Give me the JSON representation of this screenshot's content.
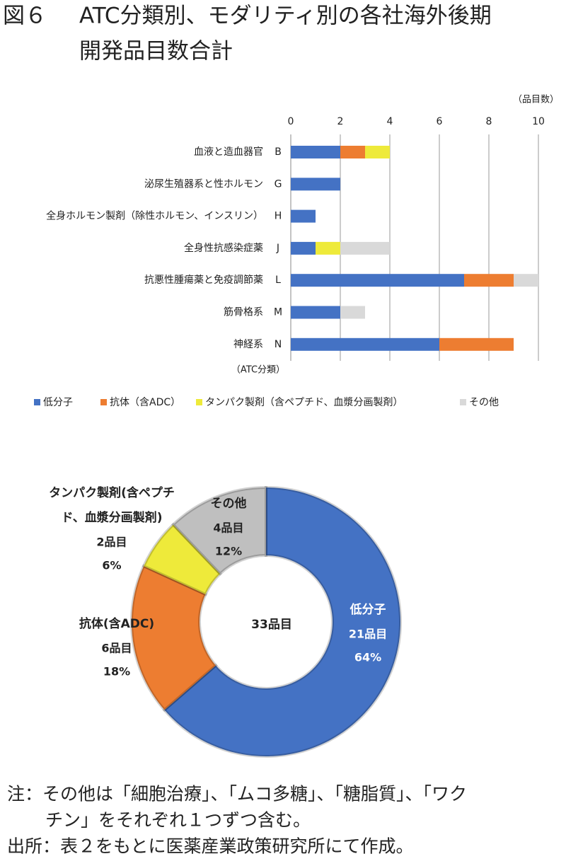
{
  "title": {
    "figure": "図６",
    "lines": [
      "ATC分類別、モダリティ別の各社海外後期",
      "開発品目数合計"
    ]
  },
  "chart_data": [
    {
      "type": "bar",
      "orientation": "horizontal",
      "stacked": true,
      "categories": [
        "血液と造血器官",
        "泌尿生殖器系と性ホルモン",
        "全身ホルモン製剤（除性ホルモン、インスリン）",
        "全身性抗感染症薬",
        "抗悪性腫瘍薬と免疫調節薬",
        "筋骨格系",
        "神経系"
      ],
      "codes": [
        "B",
        "G",
        "H",
        "J",
        "L",
        "M",
        "N"
      ],
      "series": [
        {
          "name": "低分子",
          "color": "#4472c4",
          "values": [
            2,
            2,
            1,
            1,
            7,
            2,
            6
          ]
        },
        {
          "name": "抗体（含ADC）",
          "color": "#ed7d31",
          "values": [
            1,
            0,
            0,
            0,
            2,
            0,
            3
          ]
        },
        {
          "name": "タンパク製剤（含ペプチド、血漿分画製剤）",
          "color": "#eeea3a",
          "values": [
            1,
            0,
            0,
            1,
            0,
            0,
            0
          ]
        },
        {
          "name": "その他",
          "color": "#d9d9d9",
          "values": [
            0,
            0,
            0,
            2,
            1,
            1,
            0
          ]
        }
      ],
      "xlim": [
        0,
        10
      ],
      "xticks": [
        0,
        2,
        4,
        6,
        8,
        10
      ],
      "grid": true,
      "x_unit": "（品目数）",
      "y_label": "（ATC分類）",
      "legend": "bottom"
    },
    {
      "type": "donut",
      "labels": [
        [
          "低分子"
        ],
        [
          "抗体(含ADC)"
        ],
        [
          "タンパク製剤(含ペプチ",
          "ド、血漿分画製剤)"
        ],
        [
          "その他"
        ]
      ],
      "values": [
        21,
        6,
        2,
        4
      ],
      "value_labels": [
        "21品目",
        "6品目",
        "2品目",
        "4品目"
      ],
      "percents": [
        64,
        18,
        6,
        12
      ],
      "percent_labels": [
        "64%",
        "18%",
        "6%",
        "12%"
      ],
      "colors": [
        "#4472c4",
        "#ed7d31",
        "#eeea3a",
        "#bfbfbf"
      ],
      "center_label": "33品目"
    }
  ],
  "notes": [
    "注：その他は「細胞治療」、「ムコ多糖」、「糖脂質」、「ワク",
    "チン」をそれぞれ１つずつ含む。",
    "出所：表２をもとに医薬産業政策研究所にて作成。"
  ]
}
